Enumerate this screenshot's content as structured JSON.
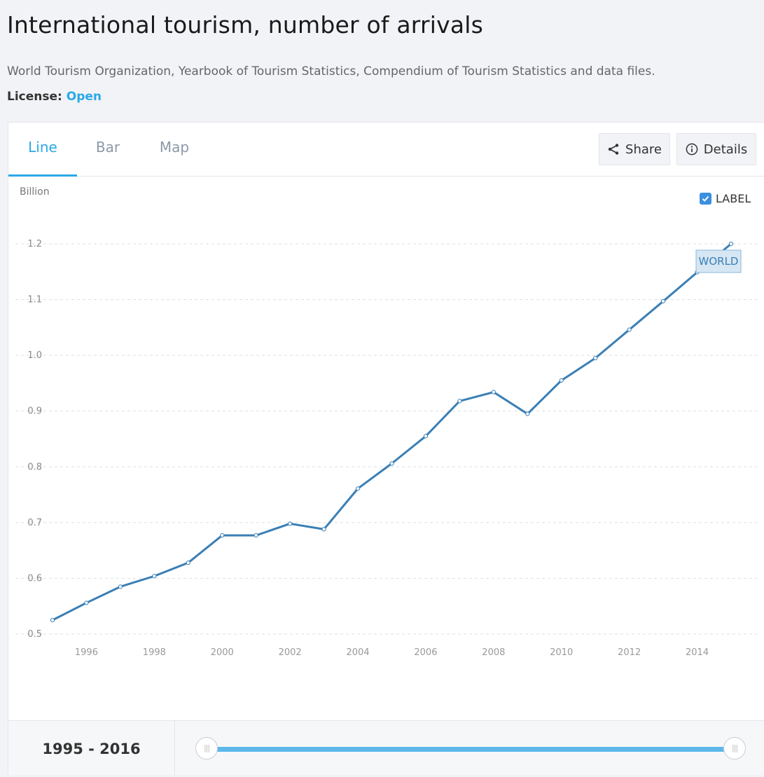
{
  "header": {
    "title": "International tourism, number of arrivals",
    "source": "World Tourism Organization, Yearbook of Tourism Statistics, Compendium of Tourism Statistics and data files.",
    "license_label": "License:",
    "license_value": "Open"
  },
  "tabs": [
    {
      "label": "Line",
      "active": true
    },
    {
      "label": "Bar",
      "active": false
    },
    {
      "label": "Map",
      "active": false
    }
  ],
  "actions": {
    "share_label": "Share",
    "details_label": "Details"
  },
  "label_toggle": {
    "label": "LABEL",
    "checked": true
  },
  "colors": {
    "accent": "#2ca8e6",
    "line": "#3a7fb5",
    "checkbox": "#3a8fe0"
  },
  "chart_data": {
    "type": "line",
    "ylabel": "Billion",
    "ylim": [
      0.5,
      1.2
    ],
    "xlim": [
      1995,
      2015
    ],
    "yticks": [
      0.5,
      0.6,
      0.7,
      0.8,
      0.9,
      1.0,
      1.1,
      1.2
    ],
    "xticks": [
      1996,
      1998,
      2000,
      2002,
      2004,
      2006,
      2008,
      2010,
      2012,
      2014
    ],
    "grid": true,
    "series": [
      {
        "name": "WORLD",
        "x": [
          1995,
          1996,
          1997,
          1998,
          1999,
          2000,
          2001,
          2002,
          2003,
          2004,
          2005,
          2006,
          2007,
          2008,
          2009,
          2010,
          2011,
          2012,
          2013,
          2014,
          2015
        ],
        "values": [
          0.525,
          0.556,
          0.585,
          0.604,
          0.628,
          0.677,
          0.677,
          0.698,
          0.688,
          0.761,
          0.806,
          0.855,
          0.918,
          0.934,
          0.895,
          0.955,
          0.995,
          1.046,
          1.097,
          1.149,
          1.2
        ]
      }
    ]
  },
  "range": {
    "start": "1995",
    "end": "2016",
    "separator": " - "
  }
}
